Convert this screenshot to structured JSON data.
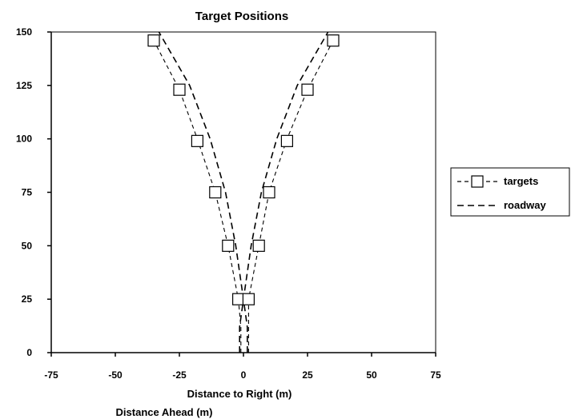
{
  "chart_data": {
    "type": "scatter",
    "title": "Target Positions",
    "xlabel": "Distance to Right (m)",
    "ylabel": "Distance Ahead (m)",
    "xlim": [
      -75,
      75
    ],
    "ylim": [
      0,
      150
    ],
    "x_ticks": [
      -75,
      -50,
      -25,
      0,
      25,
      50,
      75
    ],
    "y_ticks": [
      0,
      25,
      50,
      75,
      100,
      125,
      150
    ],
    "x_tick_labels": [
      "-75",
      "-50",
      "-25",
      "0",
      "25",
      "50",
      "75"
    ],
    "y_tick_labels": [
      "0",
      "25",
      "50",
      "75",
      "100",
      "125",
      "150"
    ],
    "grid": false,
    "legend_position": "right",
    "series": [
      {
        "name": "targets",
        "marker": "square",
        "line_style": "dashed",
        "color": "#000000",
        "lines": [
          {
            "points": [
              [
                -1,
                0
              ],
              [
                -1,
                12
              ],
              [
                -2,
                25
              ],
              [
                -6,
                50
              ],
              [
                -11,
                75
              ],
              [
                -18,
                100
              ],
              [
                -25,
                123
              ],
              [
                -35,
                146
              ]
            ]
          },
          {
            "points": [
              [
                2,
                0
              ],
              [
                2,
                12
              ],
              [
                2,
                25
              ],
              [
                6,
                50
              ],
              [
                10,
                75
              ],
              [
                17,
                100
              ],
              [
                25,
                123
              ],
              [
                35,
                146
              ]
            ]
          }
        ],
        "markers": [
          [
            -35,
            146
          ],
          [
            -25,
            123
          ],
          [
            -18,
            99
          ],
          [
            -11,
            75
          ],
          [
            -6,
            50
          ],
          [
            -2,
            25
          ],
          [
            2,
            25
          ],
          [
            6,
            50
          ],
          [
            10,
            75
          ],
          [
            17,
            99
          ],
          [
            25,
            123
          ],
          [
            35,
            146
          ]
        ]
      },
      {
        "name": "roadway",
        "marker": "none",
        "line_style": "dashed",
        "color": "#000000",
        "lines": [
          {
            "points": [
              [
                -1.5,
                0
              ],
              [
                -1.5,
                12
              ],
              [
                0,
                25
              ],
              [
                -3,
                50
              ],
              [
                -7,
                75
              ],
              [
                -13,
                100
              ],
              [
                -21,
                125
              ],
              [
                -33,
                150
              ]
            ]
          },
          {
            "points": [
              [
                1.5,
                0
              ],
              [
                1.5,
                12
              ],
              [
                0,
                25
              ],
              [
                3,
                50
              ],
              [
                7,
                75
              ],
              [
                13,
                100
              ],
              [
                21,
                125
              ],
              [
                33,
                150
              ]
            ]
          }
        ]
      }
    ]
  }
}
